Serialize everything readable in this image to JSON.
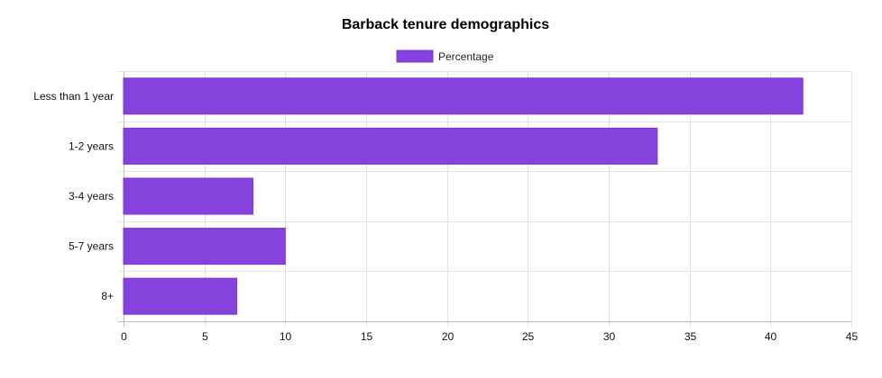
{
  "chart_data": {
    "type": "bar",
    "orientation": "horizontal",
    "title": "Barback tenure demographics",
    "categories": [
      "Less than 1 year",
      "1-2 years",
      "3-4 years",
      "5-7 years",
      "8+"
    ],
    "series": [
      {
        "name": "Percentage",
        "values": [
          42,
          33,
          8,
          10,
          7
        ],
        "color": "#8542dc",
        "border_color": "#7c35d6"
      }
    ],
    "xlim": [
      0,
      45
    ],
    "x_ticks": [
      0,
      5,
      10,
      15,
      20,
      25,
      30,
      35,
      40,
      45
    ],
    "xlabel": "",
    "ylabel": "",
    "grid": true,
    "legend_position": "top-center"
  }
}
